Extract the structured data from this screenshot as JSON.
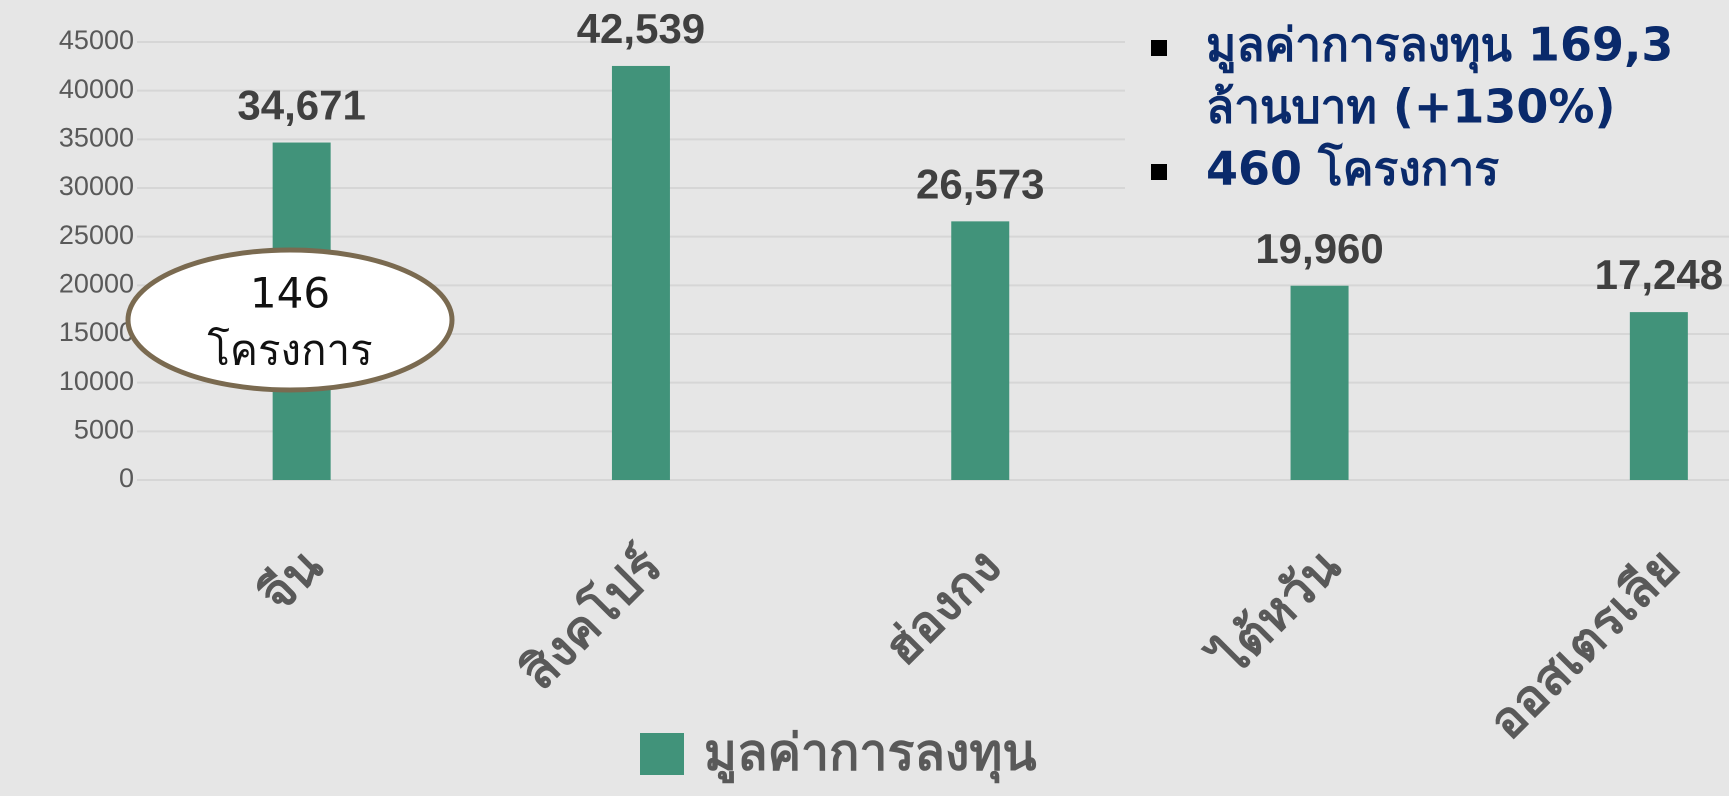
{
  "chart_data": {
    "type": "bar",
    "categories": [
      "จีน",
      "สิงคโปร์",
      "ฮ่องกง",
      "ไต้หวัน",
      "ออสเตรเลีย"
    ],
    "series": [
      {
        "name": "มูลค่าการลงทุน",
        "color": "#41937a",
        "values": [
          34671,
          42539,
          26573,
          19960,
          17248
        ],
        "value_labels": [
          "34,671",
          "42,539",
          "26,573",
          "19,960",
          "17,248"
        ]
      }
    ],
    "ylim": [
      0,
      45000
    ],
    "yticks": [
      0,
      5000,
      10000,
      15000,
      20000,
      25000,
      30000,
      35000,
      40000,
      45000
    ],
    "grid": true,
    "legend": "bottom",
    "annotations": {
      "ellipse": [
        "146",
        "โครงการ"
      ],
      "bullets": [
        [
          "มูลค่าการลงทุน 169,3",
          "ล้านบาท (+130%)"
        ],
        [
          "460 โครงการ"
        ]
      ]
    }
  }
}
